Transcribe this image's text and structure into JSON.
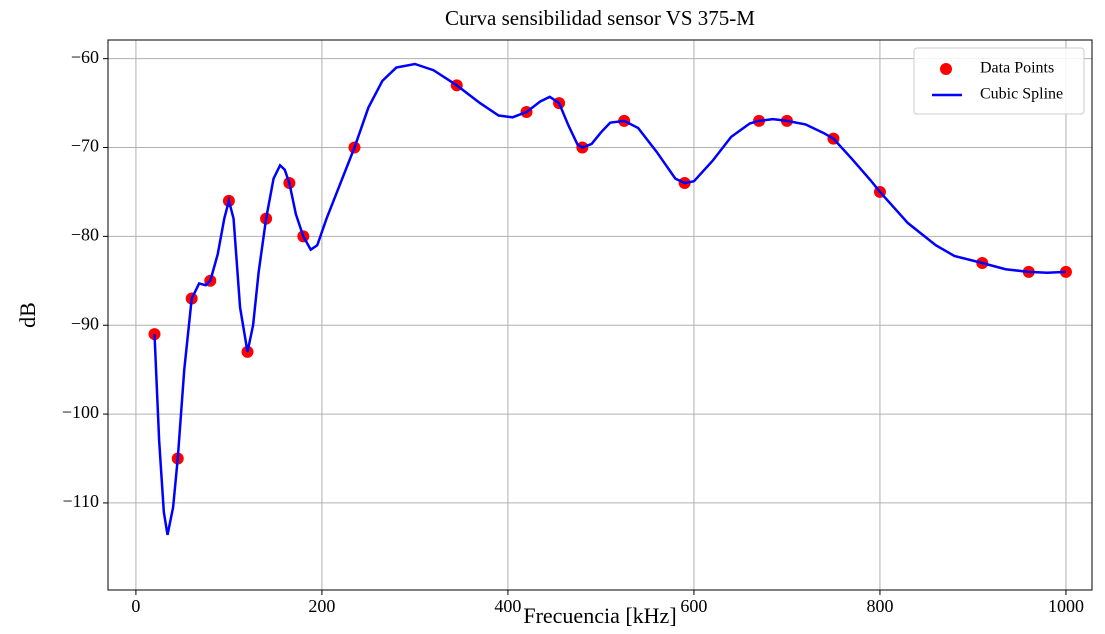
{
  "chart_data": {
    "type": "line",
    "title": "Curva sensibilidad sensor VS 375-M",
    "x_label": "Frecuencia [kHz]",
    "y_label": "dB",
    "xlim": [
      -30,
      1028
    ],
    "ylim": [
      -119.8,
      -57.9
    ],
    "xticks": [
      0,
      200,
      400,
      600,
      800,
      1000
    ],
    "yticks": [
      {
        "value": -110,
        "label": "−110"
      },
      {
        "value": -100,
        "label": "−100"
      },
      {
        "value": -90,
        "label": "−90"
      },
      {
        "value": -80,
        "label": "−80"
      },
      {
        "value": -70,
        "label": "−70"
      },
      {
        "value": -60,
        "label": "−60"
      }
    ],
    "grid": true,
    "legend": "upper right",
    "series": [
      {
        "name": "Data Points",
        "color": "#ff0000",
        "kind": "scatter",
        "x": [
          20,
          45,
          60,
          80,
          100,
          120,
          140,
          165,
          180,
          235,
          345,
          420,
          455,
          480,
          525,
          590,
          670,
          700,
          750,
          800,
          910,
          960,
          1000
        ],
        "values": [
          -91,
          -105,
          -87,
          -85,
          -76,
          -93,
          -78,
          -74,
          -80,
          -70,
          -63,
          -66,
          -65,
          -70,
          -67,
          -74,
          -67,
          -67,
          -69,
          -75,
          -83,
          -84,
          -84
        ]
      },
      {
        "name": "Cubic Spline",
        "color": "#0000ff",
        "kind": "line",
        "x": [
          20,
          25,
          30,
          34,
          40,
          45,
          52,
          60,
          68,
          75,
          80,
          88,
          95,
          100,
          105,
          112,
          120,
          126,
          132,
          140,
          148,
          155,
          160,
          165,
          172,
          180,
          188,
          195,
          205,
          220,
          235,
          250,
          265,
          280,
          300,
          320,
          345,
          370,
          390,
          405,
          420,
          435,
          445,
          455,
          465,
          475,
          480,
          490,
          500,
          510,
          525,
          540,
          560,
          580,
          590,
          600,
          620,
          640,
          660,
          670,
          685,
          700,
          720,
          740,
          750,
          770,
          790,
          800,
          830,
          860,
          880,
          910,
          935,
          960,
          980,
          1000
        ],
        "values": [
          -91,
          -103,
          -111,
          -113.6,
          -110.5,
          -105,
          -95,
          -87,
          -85.3,
          -85.5,
          -85,
          -82,
          -78,
          -76,
          -78,
          -88,
          -93,
          -90,
          -84,
          -78,
          -73.5,
          -72,
          -72.5,
          -74,
          -77.5,
          -80,
          -81.5,
          -81,
          -78,
          -74,
          -70,
          -65.5,
          -62.5,
          -61,
          -60.6,
          -61.3,
          -63,
          -65,
          -66.4,
          -66.6,
          -66,
          -64.8,
          -64.3,
          -65,
          -67.5,
          -69.7,
          -70,
          -69.6,
          -68.3,
          -67.2,
          -67,
          -67.8,
          -70.5,
          -73.5,
          -74,
          -73.8,
          -71.5,
          -68.8,
          -67.3,
          -67,
          -66.8,
          -67,
          -67.4,
          -68.4,
          -69,
          -71.3,
          -73.7,
          -75,
          -78.5,
          -81,
          -82.2,
          -83,
          -83.7,
          -84,
          -84.1,
          -84
        ]
      }
    ]
  }
}
